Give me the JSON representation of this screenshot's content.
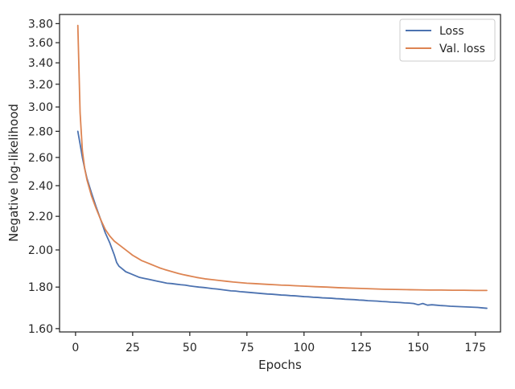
{
  "chart_data": {
    "type": "line",
    "title": "",
    "xlabel": "Epochs",
    "ylabel": "Negative log-likelihood",
    "xlim": [
      -7,
      186
    ],
    "ylim": [
      1.585,
      3.9
    ],
    "yscale": "log",
    "xticks": [
      0,
      25,
      50,
      75,
      100,
      125,
      150,
      175
    ],
    "xtick_labels": [
      "0",
      "25",
      "50",
      "75",
      "100",
      "125",
      "150",
      "175"
    ],
    "yticks": [
      1.6,
      1.8,
      2.0,
      2.2,
      2.4,
      2.6,
      2.8,
      3.0,
      3.2,
      3.4,
      3.6,
      3.8
    ],
    "ytick_labels": [
      "1.60",
      "1.80",
      "2.00",
      "2.20",
      "2.40",
      "2.60",
      "2.80",
      "3.00",
      "3.20",
      "3.40",
      "3.60",
      "3.80"
    ],
    "grid": false,
    "legend_position": "top-right",
    "series": [
      {
        "name": "Loss",
        "color": "#4c72b0",
        "x": [
          1,
          2,
          3,
          4,
          5,
          7,
          9,
          11,
          13,
          15,
          17,
          18,
          19,
          20,
          22,
          24,
          26,
          28,
          30,
          32,
          34,
          36,
          38,
          40,
          42,
          44,
          46,
          48,
          50,
          52,
          54,
          56,
          58,
          60,
          62,
          64,
          66,
          68,
          70,
          72,
          74,
          76,
          78,
          80,
          82,
          84,
          86,
          88,
          90,
          92,
          94,
          96,
          98,
          100,
          102,
          104,
          106,
          108,
          110,
          112,
          114,
          116,
          118,
          120,
          122,
          124,
          126,
          128,
          130,
          132,
          134,
          136,
          138,
          140,
          142,
          144,
          146,
          148,
          150,
          152,
          154,
          156,
          158,
          160,
          162,
          164,
          166,
          168,
          170,
          172,
          174,
          176,
          178,
          180
        ],
        "y": [
          2.8,
          2.7,
          2.6,
          2.52,
          2.45,
          2.35,
          2.26,
          2.18,
          2.1,
          2.04,
          1.97,
          1.93,
          1.91,
          1.9,
          1.88,
          1.87,
          1.86,
          1.85,
          1.845,
          1.84,
          1.835,
          1.83,
          1.825,
          1.82,
          1.818,
          1.815,
          1.812,
          1.81,
          1.806,
          1.803,
          1.8,
          1.798,
          1.795,
          1.792,
          1.79,
          1.787,
          1.784,
          1.781,
          1.78,
          1.777,
          1.775,
          1.773,
          1.771,
          1.769,
          1.767,
          1.765,
          1.764,
          1.762,
          1.76,
          1.759,
          1.757,
          1.756,
          1.754,
          1.752,
          1.751,
          1.749,
          1.748,
          1.746,
          1.745,
          1.744,
          1.742,
          1.741,
          1.739,
          1.738,
          1.737,
          1.735,
          1.734,
          1.732,
          1.731,
          1.73,
          1.728,
          1.727,
          1.725,
          1.724,
          1.723,
          1.721,
          1.72,
          1.718,
          1.712,
          1.718,
          1.71,
          1.712,
          1.71,
          1.708,
          1.707,
          1.705,
          1.704,
          1.703,
          1.702,
          1.701,
          1.7,
          1.699,
          1.697,
          1.695
        ]
      },
      {
        "name": "Val. loss",
        "color": "#dd8452",
        "x": [
          1,
          2,
          3,
          4,
          5,
          7,
          9,
          11,
          13,
          15,
          17,
          19,
          21,
          23,
          25,
          27,
          29,
          31,
          33,
          35,
          37,
          39,
          41,
          43,
          45,
          47,
          49,
          51,
          53,
          55,
          57,
          60,
          63,
          66,
          69,
          72,
          75,
          78,
          81,
          84,
          87,
          90,
          93,
          96,
          100,
          105,
          110,
          115,
          120,
          125,
          130,
          135,
          140,
          145,
          150,
          155,
          160,
          165,
          170,
          175,
          178,
          180
        ],
        "y": [
          3.78,
          2.95,
          2.65,
          2.52,
          2.44,
          2.33,
          2.25,
          2.18,
          2.12,
          2.08,
          2.05,
          2.03,
          2.01,
          1.99,
          1.97,
          1.955,
          1.94,
          1.93,
          1.92,
          1.91,
          1.9,
          1.892,
          1.885,
          1.878,
          1.871,
          1.865,
          1.86,
          1.855,
          1.85,
          1.846,
          1.842,
          1.838,
          1.834,
          1.83,
          1.826,
          1.823,
          1.82,
          1.818,
          1.816,
          1.814,
          1.812,
          1.81,
          1.809,
          1.807,
          1.805,
          1.802,
          1.8,
          1.797,
          1.795,
          1.793,
          1.791,
          1.789,
          1.788,
          1.787,
          1.786,
          1.785,
          1.785,
          1.784,
          1.784,
          1.783,
          1.783,
          1.783
        ]
      }
    ]
  }
}
